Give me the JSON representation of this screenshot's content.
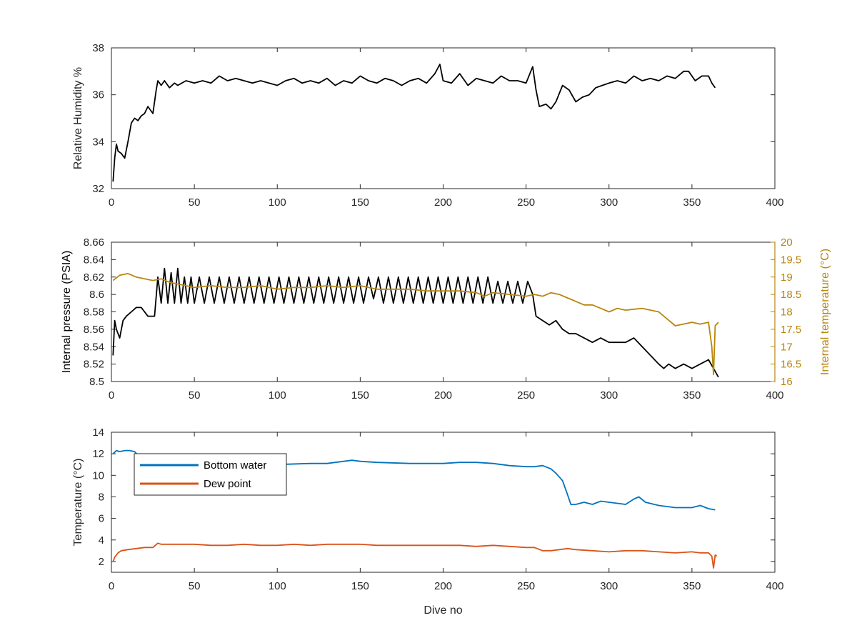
{
  "figure": {
    "colors": {
      "black": "#000000",
      "axis": "#262626",
      "blue": "#0072BD",
      "orange": "#D95319",
      "gold": "#B8860B"
    }
  },
  "chart_data": [
    {
      "type": "line",
      "xlabel": "",
      "ylabel": "Relative Humidity %",
      "xlim": [
        0,
        400
      ],
      "ylim": [
        32,
        38
      ],
      "xticks": [
        0,
        50,
        100,
        150,
        200,
        250,
        300,
        350,
        400
      ],
      "yticks": [
        32,
        34,
        36,
        38
      ],
      "grid": false,
      "series": [
        {
          "color": "#000000",
          "x": [
            1,
            2,
            3,
            4,
            6,
            8,
            10,
            12,
            14,
            16,
            18,
            20,
            22,
            25,
            27,
            28,
            30,
            32,
            35,
            38,
            40,
            45,
            50,
            55,
            60,
            65,
            70,
            75,
            80,
            85,
            90,
            95,
            100,
            105,
            110,
            115,
            120,
            125,
            130,
            135,
            140,
            145,
            150,
            155,
            160,
            165,
            170,
            175,
            180,
            185,
            190,
            195,
            198,
            200,
            205,
            210,
            215,
            220,
            225,
            230,
            235,
            240,
            245,
            250,
            254,
            256,
            258,
            262,
            265,
            268,
            272,
            276,
            280,
            284,
            288,
            292,
            296,
            300,
            305,
            310,
            315,
            320,
            325,
            330,
            335,
            340,
            345,
            348,
            352,
            356,
            360,
            362,
            364
          ],
          "y": [
            32.3,
            33.3,
            33.9,
            33.6,
            33.5,
            33.3,
            34.0,
            34.8,
            35.0,
            34.9,
            35.1,
            35.2,
            35.5,
            35.2,
            36.2,
            36.6,
            36.4,
            36.6,
            36.3,
            36.5,
            36.4,
            36.6,
            36.5,
            36.6,
            36.5,
            36.8,
            36.6,
            36.7,
            36.6,
            36.5,
            36.6,
            36.5,
            36.4,
            36.6,
            36.7,
            36.5,
            36.6,
            36.5,
            36.7,
            36.4,
            36.6,
            36.5,
            36.8,
            36.6,
            36.5,
            36.7,
            36.6,
            36.4,
            36.6,
            36.7,
            36.5,
            36.9,
            37.3,
            36.6,
            36.5,
            36.9,
            36.4,
            36.7,
            36.6,
            36.5,
            36.8,
            36.6,
            36.6,
            36.5,
            37.2,
            36.2,
            35.5,
            35.6,
            35.4,
            35.7,
            36.4,
            36.2,
            35.7,
            35.9,
            36.0,
            36.3,
            36.4,
            36.5,
            36.6,
            36.5,
            36.8,
            36.6,
            36.7,
            36.6,
            36.8,
            36.7,
            37.0,
            37.0,
            36.6,
            36.8,
            36.8,
            36.5,
            36.3
          ]
        }
      ]
    },
    {
      "type": "line",
      "xlabel": "",
      "ylabel": "Internal pressure (PSIA)",
      "ylabel_right": "Internal temperature (°C)",
      "xlim": [
        0,
        400
      ],
      "ylim": [
        8.5,
        8.66
      ],
      "ylim_right": [
        16,
        20
      ],
      "xticks": [
        0,
        50,
        100,
        150,
        200,
        250,
        300,
        350,
        400
      ],
      "yticks": [
        8.5,
        8.52,
        8.54,
        8.56,
        8.58,
        8.6,
        8.62,
        8.64,
        8.66
      ],
      "yticks_right": [
        16,
        16.5,
        17,
        17.5,
        18,
        18.5,
        19,
        19.5,
        20
      ],
      "grid": false,
      "series": [
        {
          "color": "#000000",
          "axis": "left",
          "x": [
            1,
            2,
            3,
            5,
            7,
            9,
            12,
            15,
            18,
            22,
            26,
            28,
            30,
            32,
            34,
            36,
            38,
            40,
            42,
            44,
            46,
            48,
            50,
            53,
            56,
            59,
            62,
            65,
            68,
            71,
            74,
            77,
            80,
            83,
            86,
            89,
            92,
            95,
            98,
            101,
            104,
            107,
            110,
            113,
            116,
            119,
            122,
            125,
            128,
            131,
            134,
            137,
            140,
            143,
            146,
            149,
            152,
            155,
            158,
            161,
            164,
            167,
            170,
            173,
            176,
            179,
            182,
            185,
            188,
            191,
            194,
            197,
            200,
            203,
            206,
            209,
            212,
            215,
            218,
            221,
            224,
            227,
            230,
            233,
            236,
            239,
            242,
            245,
            248,
            251,
            254,
            256,
            260,
            264,
            268,
            272,
            276,
            280,
            285,
            290,
            295,
            300,
            305,
            310,
            315,
            320,
            325,
            330,
            333,
            336,
            340,
            345,
            350,
            355,
            360,
            363,
            366
          ],
          "y": [
            8.53,
            8.57,
            8.56,
            8.55,
            8.57,
            8.575,
            8.58,
            8.585,
            8.585,
            8.575,
            8.575,
            8.62,
            8.59,
            8.63,
            8.59,
            8.625,
            8.59,
            8.63,
            8.59,
            8.62,
            8.59,
            8.62,
            8.59,
            8.62,
            8.59,
            8.62,
            8.59,
            8.62,
            8.59,
            8.62,
            8.59,
            8.62,
            8.59,
            8.62,
            8.59,
            8.62,
            8.59,
            8.62,
            8.59,
            8.62,
            8.59,
            8.62,
            8.59,
            8.62,
            8.59,
            8.62,
            8.59,
            8.62,
            8.59,
            8.62,
            8.59,
            8.62,
            8.59,
            8.62,
            8.59,
            8.62,
            8.59,
            8.62,
            8.595,
            8.62,
            8.59,
            8.62,
            8.59,
            8.62,
            8.59,
            8.62,
            8.59,
            8.62,
            8.59,
            8.62,
            8.59,
            8.62,
            8.59,
            8.62,
            8.59,
            8.62,
            8.59,
            8.62,
            8.59,
            8.62,
            8.59,
            8.62,
            8.59,
            8.615,
            8.59,
            8.615,
            8.59,
            8.615,
            8.59,
            8.615,
            8.6,
            8.575,
            8.57,
            8.565,
            8.57,
            8.56,
            8.555,
            8.555,
            8.55,
            8.545,
            8.55,
            8.545,
            8.545,
            8.545,
            8.55,
            8.54,
            8.53,
            8.52,
            8.515,
            8.52,
            8.515,
            8.52,
            8.515,
            8.52,
            8.525,
            8.515,
            8.505
          ]
        },
        {
          "color": "#B8860B",
          "axis": "right",
          "x": [
            1,
            5,
            10,
            15,
            20,
            25,
            30,
            35,
            40,
            45,
            50,
            60,
            70,
            80,
            90,
            100,
            110,
            120,
            130,
            140,
            150,
            160,
            170,
            180,
            190,
            200,
            210,
            220,
            225,
            230,
            240,
            250,
            255,
            260,
            265,
            270,
            275,
            280,
            285,
            290,
            295,
            300,
            305,
            310,
            320,
            330,
            335,
            340,
            350,
            355,
            360,
            362,
            363,
            364,
            366
          ],
          "y": [
            18.9,
            19.05,
            19.1,
            19.0,
            18.95,
            18.9,
            18.95,
            18.85,
            18.8,
            18.75,
            18.7,
            18.75,
            18.7,
            18.7,
            18.75,
            18.65,
            18.7,
            18.7,
            18.75,
            18.7,
            18.75,
            18.65,
            18.65,
            18.65,
            18.6,
            18.6,
            18.6,
            18.55,
            18.45,
            18.55,
            18.5,
            18.45,
            18.5,
            18.45,
            18.55,
            18.5,
            18.4,
            18.3,
            18.2,
            18.2,
            18.1,
            18.0,
            18.1,
            18.05,
            18.1,
            18.0,
            17.8,
            17.6,
            17.7,
            17.65,
            17.7,
            17.0,
            16.2,
            17.6,
            17.7
          ]
        }
      ]
    },
    {
      "type": "line",
      "xlabel": "Dive no",
      "ylabel": "Temperature (°C)",
      "xlim": [
        0,
        400
      ],
      "ylim": [
        1,
        14
      ],
      "xticks": [
        0,
        50,
        100,
        150,
        200,
        250,
        300,
        350,
        400
      ],
      "yticks": [
        2,
        4,
        6,
        8,
        10,
        12,
        14
      ],
      "grid": false,
      "legend_position": "upper-left",
      "series": [
        {
          "name": "Bottom water",
          "color": "#0072BD",
          "x": [
            1,
            3,
            5,
            8,
            11,
            14,
            17,
            20,
            30,
            50,
            70,
            90,
            100,
            120,
            130,
            140,
            145,
            150,
            160,
            180,
            200,
            210,
            220,
            230,
            240,
            250,
            255,
            260,
            265,
            268,
            272,
            275,
            277,
            280,
            285,
            290,
            295,
            300,
            305,
            310,
            315,
            318,
            322,
            330,
            340,
            350,
            355,
            360,
            364
          ],
          "y": [
            12.0,
            12.3,
            12.2,
            12.3,
            12.3,
            12.2,
            11.7,
            11.4,
            11.3,
            11.2,
            11.1,
            11.1,
            11.0,
            11.1,
            11.1,
            11.3,
            11.4,
            11.3,
            11.2,
            11.1,
            11.1,
            11.2,
            11.2,
            11.1,
            10.9,
            10.8,
            10.8,
            10.9,
            10.6,
            10.2,
            9.5,
            8.2,
            7.3,
            7.3,
            7.5,
            7.3,
            7.6,
            7.5,
            7.4,
            7.3,
            7.8,
            8.0,
            7.5,
            7.2,
            7.0,
            7.0,
            7.2,
            6.9,
            6.8
          ]
        },
        {
          "name": "Dew point",
          "color": "#D95319",
          "x": [
            1,
            2,
            4,
            6,
            10,
            15,
            20,
            25,
            28,
            30,
            40,
            50,
            60,
            70,
            80,
            90,
            100,
            110,
            120,
            130,
            140,
            150,
            160,
            170,
            180,
            190,
            200,
            210,
            220,
            230,
            240,
            250,
            255,
            260,
            265,
            270,
            275,
            280,
            290,
            300,
            310,
            320,
            330,
            340,
            350,
            355,
            360,
            362,
            363,
            364,
            365
          ],
          "y": [
            2.0,
            2.4,
            2.8,
            3.0,
            3.1,
            3.2,
            3.3,
            3.3,
            3.7,
            3.6,
            3.6,
            3.6,
            3.5,
            3.5,
            3.6,
            3.5,
            3.5,
            3.6,
            3.5,
            3.6,
            3.6,
            3.6,
            3.5,
            3.5,
            3.5,
            3.5,
            3.5,
            3.5,
            3.4,
            3.5,
            3.4,
            3.3,
            3.3,
            3.0,
            3.0,
            3.1,
            3.2,
            3.1,
            3.0,
            2.9,
            3.0,
            3.0,
            2.9,
            2.8,
            2.9,
            2.8,
            2.8,
            2.5,
            1.4,
            2.6,
            2.5
          ]
        }
      ]
    }
  ]
}
